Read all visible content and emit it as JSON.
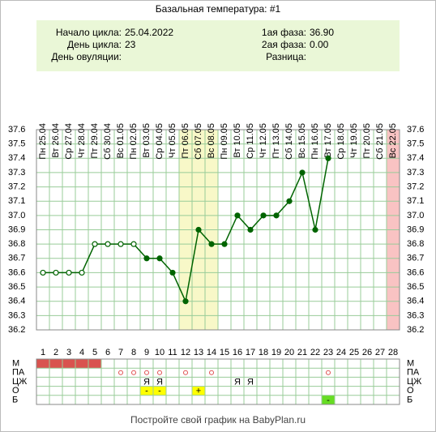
{
  "chart_data": {
    "type": "line",
    "title": "Базальная температура: #1",
    "info_left": [
      {
        "label": "Начало цикла:",
        "value": "25.04.2022"
      },
      {
        "label": "День цикла:",
        "value": "23"
      },
      {
        "label": "День овуляции:"
      }
    ],
    "info_right": [
      {
        "label": "1ая фаза:",
        "value": "36.90"
      },
      {
        "label": "2ая фаза:",
        "value": "0.00"
      },
      {
        "label": "Разница:"
      }
    ],
    "dates": [
      "Пн 25.04",
      "Вт 26.04",
      "Ср 27.04",
      "Чт 28.04",
      "Пт 29.04",
      "Сб 30.04",
      "Вс 01.05",
      "Пн 02.05",
      "Вт 03.05",
      "Ср 04.05",
      "Чт 05.05",
      "Пт 06.05",
      "Сб 07.05",
      "Вс 08.05",
      "Пн 09.05",
      "Вт 10.05",
      "Ср 11.05",
      "Чт 12.05",
      "Пт 13.05",
      "Сб 14.05",
      "Вс 15.05",
      "Пн 16.05",
      "Вт 17.05",
      "Ср 18.05",
      "Чт 19.05",
      "Пт 20.05",
      "Сб 21.05",
      "Вс 22.05"
    ],
    "categories": [
      1,
      2,
      3,
      4,
      5,
      6,
      7,
      8,
      9,
      10,
      11,
      12,
      13,
      14,
      15,
      16,
      17,
      18,
      19,
      20,
      21,
      22,
      23,
      24,
      25,
      26,
      27,
      28
    ],
    "series": [
      {
        "color": "#006400",
        "values": [
          36.6,
          36.6,
          36.6,
          36.6,
          36.8,
          36.8,
          36.8,
          36.8,
          36.7,
          36.7,
          36.6,
          36.4,
          36.9,
          36.8,
          36.8,
          37.0,
          36.9,
          37.0,
          37.0,
          37.1,
          37.3,
          36.9,
          37.4,
          null,
          null,
          null,
          null,
          null
        ],
        "markers": [
          "open",
          "open",
          "open",
          "open",
          "open",
          "open",
          "open",
          "open",
          "filled",
          "filled",
          "filled",
          "filled",
          "filled",
          "filled",
          "filled",
          "filled",
          "filled",
          "filled",
          "filled",
          "filled",
          "filled",
          "filled",
          "filled",
          null,
          null,
          null,
          null,
          null
        ]
      }
    ],
    "ylim": [
      36.2,
      37.6
    ],
    "yticks": [
      36.2,
      36.3,
      36.4,
      36.5,
      36.6,
      36.7,
      36.8,
      36.9,
      {
        "value": 37,
        "label": "37.0"
      },
      37.1,
      37.2,
      37.3,
      37.4,
      37.5,
      37.6
    ],
    "grid": true,
    "highlights": [
      {
        "from": 12,
        "to": 14,
        "color": "#f8f8c8"
      },
      {
        "from": 28,
        "to": 28,
        "color": "#f9c3c3"
      }
    ],
    "rows": [
      {
        "label": "М",
        "cells": [
          {
            "day": 1,
            "color": "#d9534f"
          },
          {
            "day": 2,
            "color": "#d9534f"
          },
          {
            "day": 3,
            "color": "#d9534f"
          },
          {
            "day": 4,
            "color": "#d9534f"
          },
          {
            "day": 5,
            "color": "#d9534f"
          }
        ]
      },
      {
        "label": "ПА",
        "cells": [
          {
            "day": 7,
            "circle": "#e05050"
          },
          {
            "day": 8,
            "circle": "#e05050"
          },
          {
            "day": 9,
            "circle": "#e05050"
          },
          {
            "day": 10,
            "circle": "#e05050"
          },
          {
            "day": 12,
            "circle": "#e05050"
          },
          {
            "day": 14,
            "circle": "#e05050"
          },
          {
            "day": 23,
            "circle": "#e05050"
          }
        ]
      },
      {
        "label": "ЦЖ",
        "cells": [
          {
            "day": 9,
            "text": "Я"
          },
          {
            "day": 10,
            "text": "Я"
          },
          {
            "day": 16,
            "text": "Я"
          },
          {
            "day": 17,
            "text": "Я"
          }
        ]
      },
      {
        "label": "О",
        "cells": [
          {
            "day": 9,
            "text": "-",
            "color": "#ffff00"
          },
          {
            "day": 10,
            "text": "-",
            "color": "#ffff00"
          },
          {
            "day": 13,
            "text": "+",
            "color": "#ffff00"
          }
        ]
      },
      {
        "label": "Б",
        "cells": [
          {
            "day": 23,
            "text": "-",
            "color": "#66dd22"
          }
        ]
      }
    ],
    "footer": "Постройте свой график на BabyPlan.ru"
  }
}
